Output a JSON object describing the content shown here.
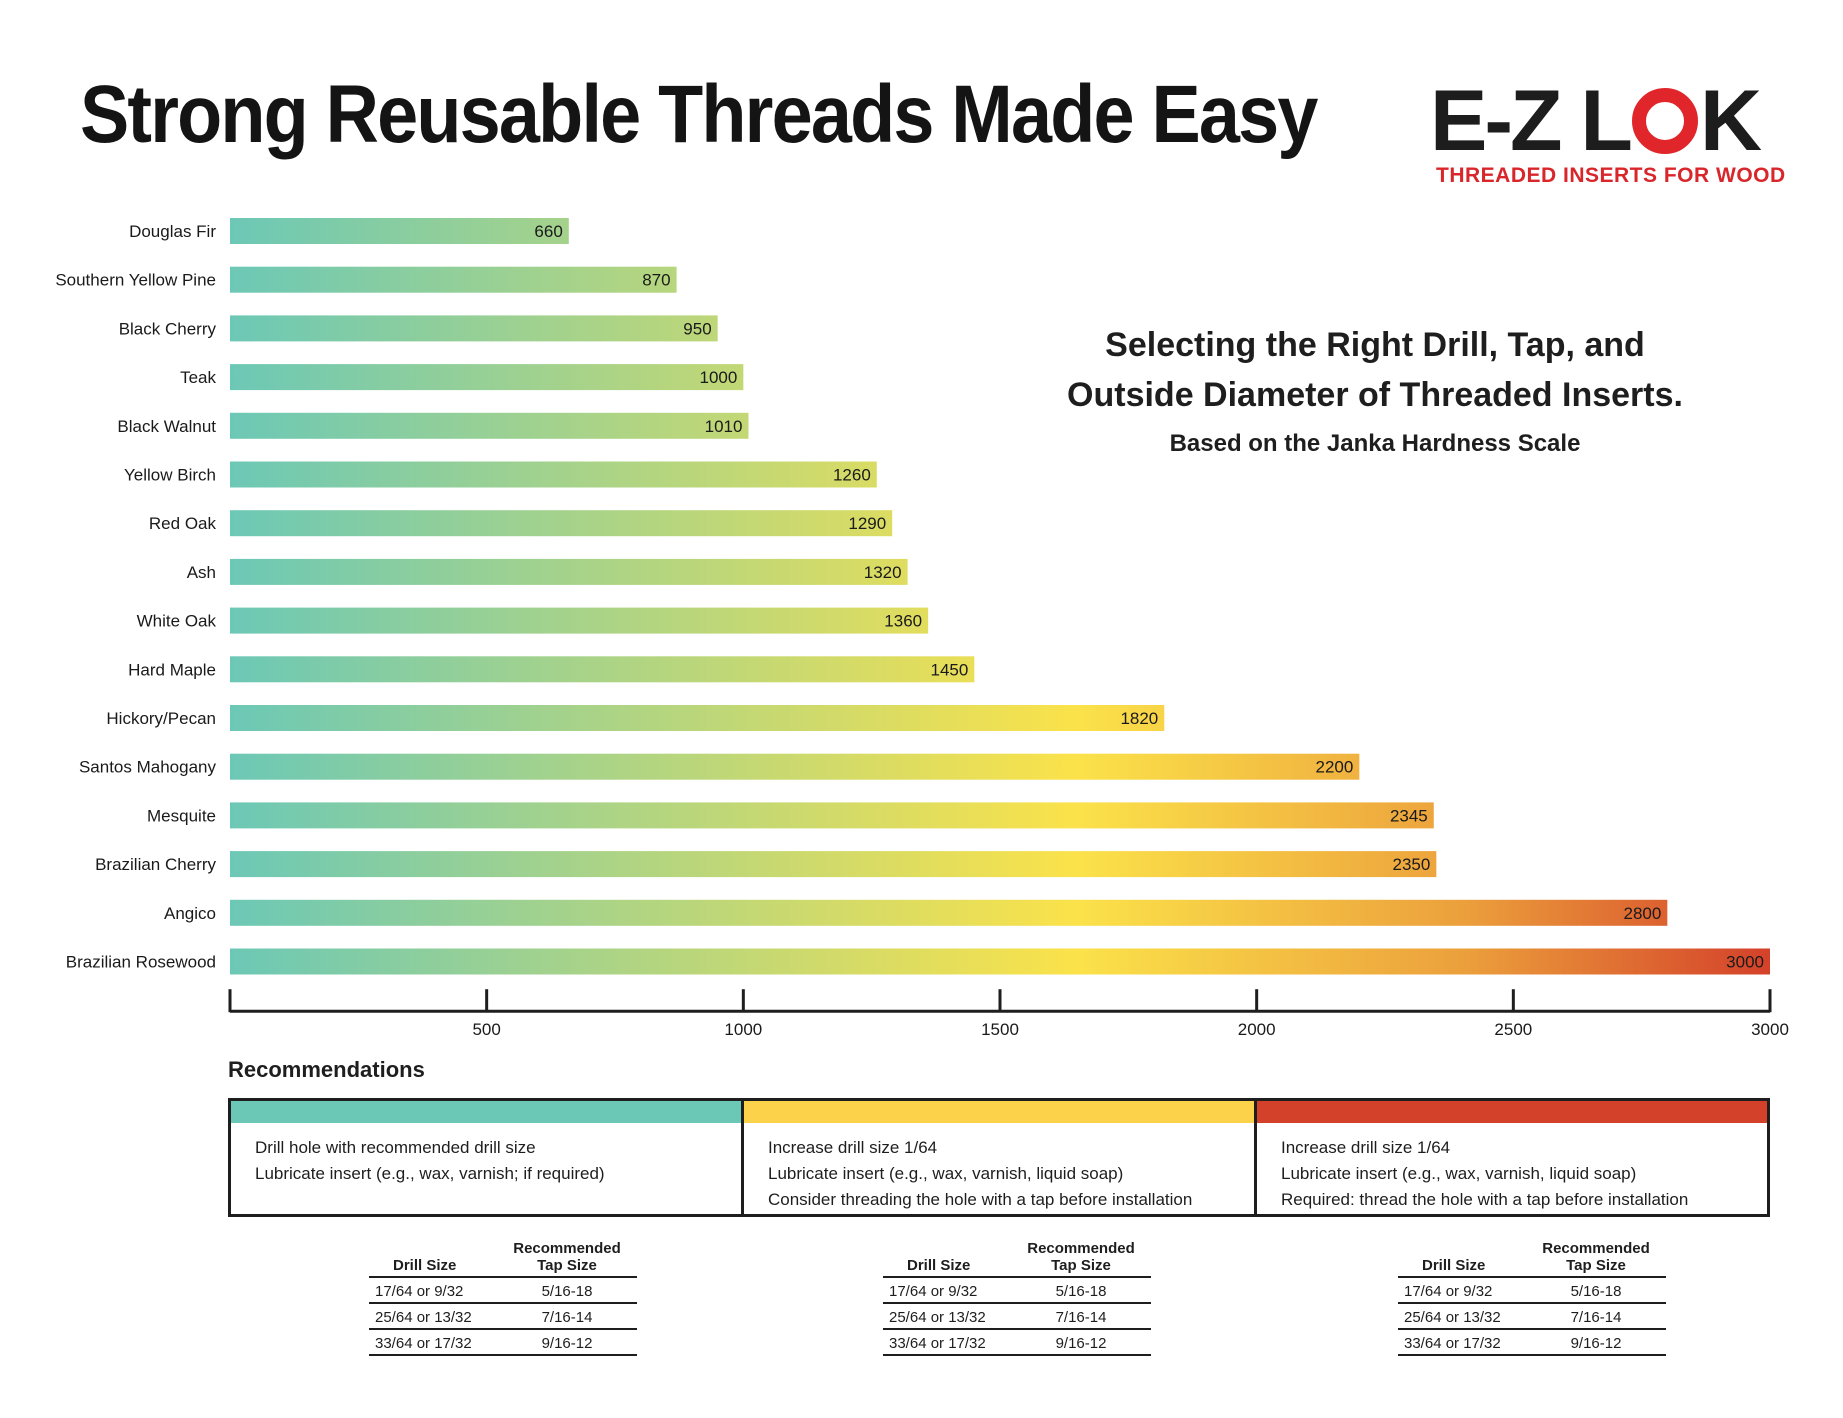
{
  "header": {
    "title": "Strong Reusable Threads Made Easy",
    "logo_text_left": "E-Z L",
    "logo_text_right": "K",
    "logo_tagline": "THREADED INSERTS FOR WOOD"
  },
  "subtitle": {
    "line1": "Selecting the Right Drill, Tap, and",
    "line2": "Outside Diameter of Threaded Inserts.",
    "line3": "Based on the Janka Hardness Scale"
  },
  "colors": {
    "teal": "#6cc8b6",
    "yellow": "#fbe24a",
    "orange": "#eca03c",
    "red": "#d4412a",
    "logo_red": "#e0262b"
  },
  "chart_data": {
    "type": "bar",
    "orientation": "horizontal",
    "categories": [
      "Douglas Fir",
      "Southern Yellow Pine",
      "Black Cherry",
      "Teak",
      "Black Walnut",
      "Yellow Birch",
      "Red Oak",
      "Ash",
      "White Oak",
      "Hard Maple",
      "Hickory/Pecan",
      "Santos Mahogany",
      "Mesquite",
      "Brazilian Cherry",
      "Angico",
      "Brazilian Rosewood"
    ],
    "values": [
      660,
      870,
      950,
      1000,
      1010,
      1260,
      1290,
      1320,
      1360,
      1450,
      1820,
      2200,
      2345,
      2350,
      2800,
      3000
    ],
    "value_labels": [
      "660",
      "870",
      "950",
      "1000",
      "1010",
      "1260",
      "1290",
      "1320",
      "1360",
      "1450",
      "1820",
      "2200",
      "2345",
      "2350",
      "2800",
      "3000"
    ],
    "xlim": [
      0,
      3000
    ],
    "xticks": [
      500,
      1000,
      1500,
      2000,
      2500,
      3000
    ],
    "xtick_labels": [
      "500",
      "1000",
      "1500",
      "2000",
      "2500",
      "3000"
    ],
    "grid": false,
    "legend": "none"
  },
  "recommendations": {
    "title": "Recommendations",
    "columns": [
      {
        "color": "#6cc8b6",
        "lines": [
          "Drill hole with recommended drill size",
          "Lubricate insert (e.g., wax, varnish; if required)"
        ]
      },
      {
        "color": "#fbd24a",
        "lines": [
          "Increase drill size 1/64",
          "Lubricate insert (e.g., wax, varnish, liquid soap)",
          "Consider threading the hole with a tap before installation"
        ]
      },
      {
        "color": "#d4412a",
        "lines": [
          "Increase drill size 1/64",
          "Lubricate insert (e.g., wax, varnish, liquid soap)",
          "Required: thread the hole with a tap before installation"
        ]
      }
    ]
  },
  "tap_tables": [
    {
      "drill_header": "Drill Size",
      "tap_header_1": "Recommended",
      "tap_header_2": "Tap Size",
      "rows": [
        {
          "drill": "17/64 or 9/32",
          "tap": "5/16-18"
        },
        {
          "drill": "25/64 or 13/32",
          "tap": "7/16-14"
        },
        {
          "drill": "33/64 or 17/32",
          "tap": "9/16-12"
        }
      ]
    },
    {
      "drill_header": "Drill Size",
      "tap_header_1": "Recommended",
      "tap_header_2": "Tap Size",
      "rows": [
        {
          "drill": "17/64 or 9/32",
          "tap": "5/16-18"
        },
        {
          "drill": "25/64 or 13/32",
          "tap": "7/16-14"
        },
        {
          "drill": "33/64 or 17/32",
          "tap": "9/16-12"
        }
      ]
    },
    {
      "drill_header": "Drill Size",
      "tap_header_1": "Recommended",
      "tap_header_2": "Tap Size",
      "rows": [
        {
          "drill": "17/64 or 9/32",
          "tap": "5/16-18"
        },
        {
          "drill": "25/64 or 13/32",
          "tap": "7/16-14"
        },
        {
          "drill": "33/64 or 17/32",
          "tap": "9/16-12"
        }
      ]
    }
  ]
}
